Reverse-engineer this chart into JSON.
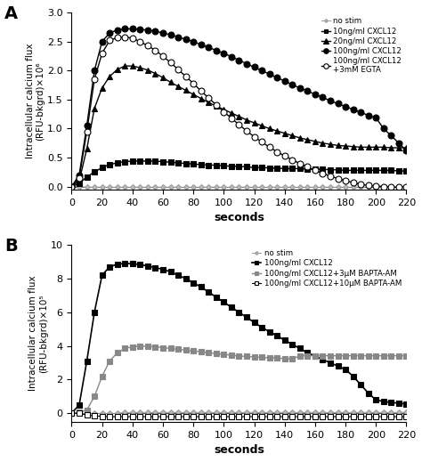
{
  "panel_A": {
    "ylabel": "Intracellular calcium flux\n(RFU-bkgrd)×10⁶",
    "xlabel": "seconds",
    "ylim": [
      -0.05,
      3.0
    ],
    "yticks": [
      0.0,
      0.5,
      1.0,
      1.5,
      2.0,
      2.5,
      3.0
    ],
    "xlim": [
      0,
      220
    ],
    "xticks": [
      0,
      20,
      40,
      60,
      80,
      100,
      120,
      140,
      160,
      180,
      200,
      220
    ],
    "series": {
      "no_stim": {
        "color": "#999999",
        "marker": "D",
        "markersize": 3,
        "linestyle": "-",
        "linewidth": 0.7,
        "markerfacecolor": "#bbbbbb",
        "markeredgecolor": "#999999",
        "label": "no stim",
        "x": [
          0,
          5,
          10,
          15,
          20,
          25,
          30,
          35,
          40,
          45,
          50,
          55,
          60,
          65,
          70,
          75,
          80,
          85,
          90,
          95,
          100,
          105,
          110,
          115,
          120,
          125,
          130,
          135,
          140,
          145,
          150,
          155,
          160,
          165,
          170,
          175,
          180,
          185,
          190,
          195,
          200,
          205,
          210,
          215,
          220
        ],
        "y": [
          0,
          0,
          -0.01,
          -0.01,
          -0.01,
          -0.01,
          -0.01,
          -0.01,
          -0.01,
          -0.01,
          -0.01,
          -0.01,
          -0.01,
          -0.01,
          -0.01,
          -0.01,
          -0.01,
          -0.01,
          -0.01,
          -0.01,
          -0.01,
          -0.01,
          -0.01,
          -0.01,
          -0.01,
          -0.01,
          -0.01,
          -0.01,
          -0.01,
          -0.01,
          -0.01,
          -0.01,
          -0.01,
          -0.01,
          -0.01,
          -0.01,
          -0.01,
          -0.01,
          -0.01,
          -0.01,
          -0.01,
          -0.01,
          -0.01,
          -0.01,
          -0.01
        ]
      },
      "10ng": {
        "color": "#000000",
        "marker": "s",
        "markersize": 4,
        "linestyle": "-",
        "linewidth": 1.0,
        "markerfacecolor": "#000000",
        "markeredgecolor": "#000000",
        "label": "10ng/ml CXCL12",
        "x": [
          0,
          5,
          10,
          15,
          20,
          25,
          30,
          35,
          40,
          45,
          50,
          55,
          60,
          65,
          70,
          75,
          80,
          85,
          90,
          95,
          100,
          105,
          110,
          115,
          120,
          125,
          130,
          135,
          140,
          145,
          150,
          155,
          160,
          165,
          170,
          175,
          180,
          185,
          190,
          195,
          200,
          205,
          210,
          215,
          220
        ],
        "y": [
          0,
          0.05,
          0.17,
          0.25,
          0.33,
          0.38,
          0.41,
          0.43,
          0.44,
          0.44,
          0.44,
          0.44,
          0.43,
          0.42,
          0.41,
          0.4,
          0.39,
          0.38,
          0.37,
          0.37,
          0.36,
          0.35,
          0.35,
          0.34,
          0.33,
          0.33,
          0.32,
          0.32,
          0.31,
          0.31,
          0.31,
          0.3,
          0.3,
          0.3,
          0.29,
          0.29,
          0.28,
          0.28,
          0.28,
          0.28,
          0.28,
          0.28,
          0.28,
          0.27,
          0.27
        ]
      },
      "20ng": {
        "color": "#000000",
        "marker": "^",
        "markersize": 5,
        "linestyle": "-",
        "linewidth": 1.0,
        "markerfacecolor": "#000000",
        "markeredgecolor": "#000000",
        "label": "20ng/ml CXCL12",
        "x": [
          0,
          5,
          10,
          15,
          20,
          25,
          30,
          35,
          40,
          45,
          50,
          55,
          60,
          65,
          70,
          75,
          80,
          85,
          90,
          95,
          100,
          105,
          110,
          115,
          120,
          125,
          130,
          135,
          140,
          145,
          150,
          155,
          160,
          165,
          170,
          175,
          180,
          185,
          190,
          195,
          200,
          205,
          210,
          215,
          220
        ],
        "y": [
          0,
          0.1,
          0.65,
          1.35,
          1.7,
          1.9,
          2.02,
          2.08,
          2.08,
          2.05,
          2.01,
          1.95,
          1.88,
          1.8,
          1.73,
          1.66,
          1.59,
          1.52,
          1.45,
          1.39,
          1.33,
          1.27,
          1.21,
          1.15,
          1.1,
          1.05,
          1.0,
          0.96,
          0.92,
          0.88,
          0.84,
          0.81,
          0.78,
          0.75,
          0.73,
          0.71,
          0.7,
          0.69,
          0.68,
          0.68,
          0.68,
          0.68,
          0.67,
          0.67,
          0.67
        ]
      },
      "100ng": {
        "color": "#000000",
        "marker": "o",
        "markersize": 5,
        "linestyle": "-",
        "linewidth": 1.0,
        "markerfacecolor": "#000000",
        "markeredgecolor": "#000000",
        "label": "100ng/ml CXCL12",
        "x": [
          0,
          5,
          10,
          15,
          20,
          25,
          30,
          35,
          40,
          45,
          50,
          55,
          60,
          65,
          70,
          75,
          80,
          85,
          90,
          95,
          100,
          105,
          110,
          115,
          120,
          125,
          130,
          135,
          140,
          145,
          150,
          155,
          160,
          165,
          170,
          175,
          180,
          185,
          190,
          195,
          200,
          205,
          210,
          215,
          220
        ],
        "y": [
          0,
          0.2,
          1.05,
          2.0,
          2.5,
          2.65,
          2.7,
          2.72,
          2.72,
          2.71,
          2.7,
          2.68,
          2.65,
          2.62,
          2.58,
          2.54,
          2.5,
          2.45,
          2.4,
          2.35,
          2.3,
          2.24,
          2.18,
          2.12,
          2.06,
          2.0,
          1.94,
          1.88,
          1.82,
          1.76,
          1.7,
          1.65,
          1.59,
          1.54,
          1.48,
          1.43,
          1.38,
          1.33,
          1.28,
          1.23,
          1.19,
          1.0,
          0.88,
          0.75,
          0.62
        ]
      },
      "100ng_egta": {
        "color": "#000000",
        "marker": "o",
        "markersize": 5,
        "linestyle": "-",
        "linewidth": 1.0,
        "markerfacecolor": "white",
        "markeredgecolor": "#000000",
        "label": "100ng/ml CXCL12\n+3mM EGTA",
        "x": [
          0,
          5,
          10,
          15,
          20,
          25,
          30,
          35,
          40,
          45,
          50,
          55,
          60,
          65,
          70,
          75,
          80,
          85,
          90,
          95,
          100,
          105,
          110,
          115,
          120,
          125,
          130,
          135,
          140,
          145,
          150,
          155,
          160,
          165,
          170,
          175,
          180,
          185,
          190,
          195,
          200,
          205,
          210,
          215,
          220
        ],
        "y": [
          0,
          0.15,
          0.95,
          1.85,
          2.3,
          2.52,
          2.57,
          2.58,
          2.56,
          2.5,
          2.43,
          2.35,
          2.25,
          2.14,
          2.02,
          1.9,
          1.78,
          1.65,
          1.53,
          1.41,
          1.29,
          1.18,
          1.07,
          0.96,
          0.86,
          0.77,
          0.68,
          0.6,
          0.53,
          0.46,
          0.4,
          0.34,
          0.28,
          0.23,
          0.18,
          0.14,
          0.1,
          0.07,
          0.04,
          0.02,
          0.01,
          0.0,
          -0.01,
          -0.01,
          -0.01
        ]
      }
    }
  },
  "panel_B": {
    "ylabel": "Intracellular calcium flux\n(RFU-bkgrd)×10⁵",
    "xlabel": "seconds",
    "ylim": [
      -0.5,
      10
    ],
    "yticks": [
      0,
      2,
      4,
      6,
      8,
      10
    ],
    "xlim": [
      0,
      220
    ],
    "xticks": [
      0,
      20,
      40,
      60,
      80,
      100,
      120,
      140,
      160,
      180,
      200,
      220
    ],
    "series": {
      "no_stim": {
        "color": "#999999",
        "marker": "D",
        "markersize": 3,
        "linestyle": "-",
        "linewidth": 0.7,
        "markerfacecolor": "#bbbbbb",
        "markeredgecolor": "#999999",
        "label": "no stim",
        "x": [
          0,
          5,
          10,
          15,
          20,
          25,
          30,
          35,
          40,
          45,
          50,
          55,
          60,
          65,
          70,
          75,
          80,
          85,
          90,
          95,
          100,
          105,
          110,
          115,
          120,
          125,
          130,
          135,
          140,
          145,
          150,
          155,
          160,
          165,
          170,
          175,
          180,
          185,
          190,
          195,
          200,
          205,
          210,
          215,
          220
        ],
        "y": [
          0,
          0.0,
          0.0,
          0.0,
          0.0,
          0.0,
          0.0,
          0.05,
          0.05,
          0.05,
          0.05,
          0.05,
          0.05,
          0.05,
          0.05,
          0.05,
          0.05,
          0.05,
          0.05,
          0.05,
          0.05,
          0.05,
          0.05,
          0.05,
          0.05,
          0.05,
          0.05,
          0.05,
          0.05,
          0.05,
          0.05,
          0.05,
          0.05,
          0.05,
          0.05,
          0.05,
          0.05,
          0.05,
          0.05,
          0.05,
          0.05,
          0.05,
          0.05,
          0.05,
          0.05
        ]
      },
      "100ng": {
        "color": "#000000",
        "marker": "s",
        "markersize": 4,
        "linestyle": "-",
        "linewidth": 1.2,
        "markerfacecolor": "#000000",
        "markeredgecolor": "#000000",
        "label": "100ng/ml CXCL12",
        "x": [
          0,
          5,
          10,
          15,
          20,
          25,
          30,
          35,
          40,
          45,
          50,
          55,
          60,
          65,
          70,
          75,
          80,
          85,
          90,
          95,
          100,
          105,
          110,
          115,
          120,
          125,
          130,
          135,
          140,
          145,
          150,
          155,
          160,
          165,
          170,
          175,
          180,
          185,
          190,
          195,
          200,
          205,
          210,
          215,
          220
        ],
        "y": [
          0,
          0.5,
          3.1,
          6.0,
          8.2,
          8.7,
          8.85,
          8.9,
          8.88,
          8.83,
          8.75,
          8.65,
          8.55,
          8.4,
          8.2,
          8.0,
          7.75,
          7.5,
          7.2,
          6.9,
          6.6,
          6.3,
          6.0,
          5.7,
          5.4,
          5.1,
          4.85,
          4.6,
          4.35,
          4.1,
          3.85,
          3.6,
          3.4,
          3.2,
          3.0,
          2.8,
          2.6,
          2.2,
          1.7,
          1.2,
          0.8,
          0.7,
          0.65,
          0.6,
          0.55
        ]
      },
      "100ng_3uM": {
        "color": "#888888",
        "marker": "s",
        "markersize": 4,
        "linestyle": "-",
        "linewidth": 1.0,
        "markerfacecolor": "#888888",
        "markeredgecolor": "#888888",
        "label": "100ng/ml CXCL12+3μM BAPTA-AM",
        "x": [
          0,
          5,
          10,
          15,
          20,
          25,
          30,
          35,
          40,
          45,
          50,
          55,
          60,
          65,
          70,
          75,
          80,
          85,
          90,
          95,
          100,
          105,
          110,
          115,
          120,
          125,
          130,
          135,
          140,
          145,
          150,
          155,
          160,
          165,
          170,
          175,
          180,
          185,
          190,
          195,
          200,
          205,
          210,
          215,
          220
        ],
        "y": [
          0,
          0.05,
          0.2,
          1.0,
          2.2,
          3.1,
          3.6,
          3.85,
          3.95,
          3.98,
          3.98,
          3.95,
          3.9,
          3.85,
          3.8,
          3.75,
          3.7,
          3.65,
          3.6,
          3.55,
          3.5,
          3.45,
          3.4,
          3.38,
          3.35,
          3.32,
          3.3,
          3.28,
          3.25,
          3.22,
          3.42,
          3.42,
          3.42,
          3.42,
          3.42,
          3.42,
          3.42,
          3.42,
          3.42,
          3.42,
          3.42,
          3.42,
          3.42,
          3.42,
          3.42
        ]
      },
      "100ng_10uM": {
        "color": "#000000",
        "marker": "s",
        "markersize": 4,
        "linestyle": "-",
        "linewidth": 0.8,
        "markerfacecolor": "white",
        "markeredgecolor": "#000000",
        "label": "100ng/ml CXCL12+10μM BAPTA-AM",
        "x": [
          0,
          5,
          10,
          15,
          20,
          25,
          30,
          35,
          40,
          45,
          50,
          55,
          60,
          65,
          70,
          75,
          80,
          85,
          90,
          95,
          100,
          105,
          110,
          115,
          120,
          125,
          130,
          135,
          140,
          145,
          150,
          155,
          160,
          165,
          170,
          175,
          180,
          185,
          190,
          195,
          200,
          205,
          210,
          215,
          220
        ],
        "y": [
          0,
          0.0,
          -0.1,
          -0.15,
          -0.18,
          -0.2,
          -0.2,
          -0.2,
          -0.2,
          -0.2,
          -0.2,
          -0.2,
          -0.2,
          -0.2,
          -0.2,
          -0.2,
          -0.2,
          -0.2,
          -0.2,
          -0.2,
          -0.2,
          -0.2,
          -0.2,
          -0.2,
          -0.2,
          -0.2,
          -0.2,
          -0.2,
          -0.2,
          -0.2,
          -0.2,
          -0.2,
          -0.2,
          -0.2,
          -0.2,
          -0.2,
          -0.2,
          -0.2,
          -0.2,
          -0.2,
          -0.2,
          -0.2,
          -0.2,
          -0.2,
          -0.2
        ]
      }
    }
  }
}
